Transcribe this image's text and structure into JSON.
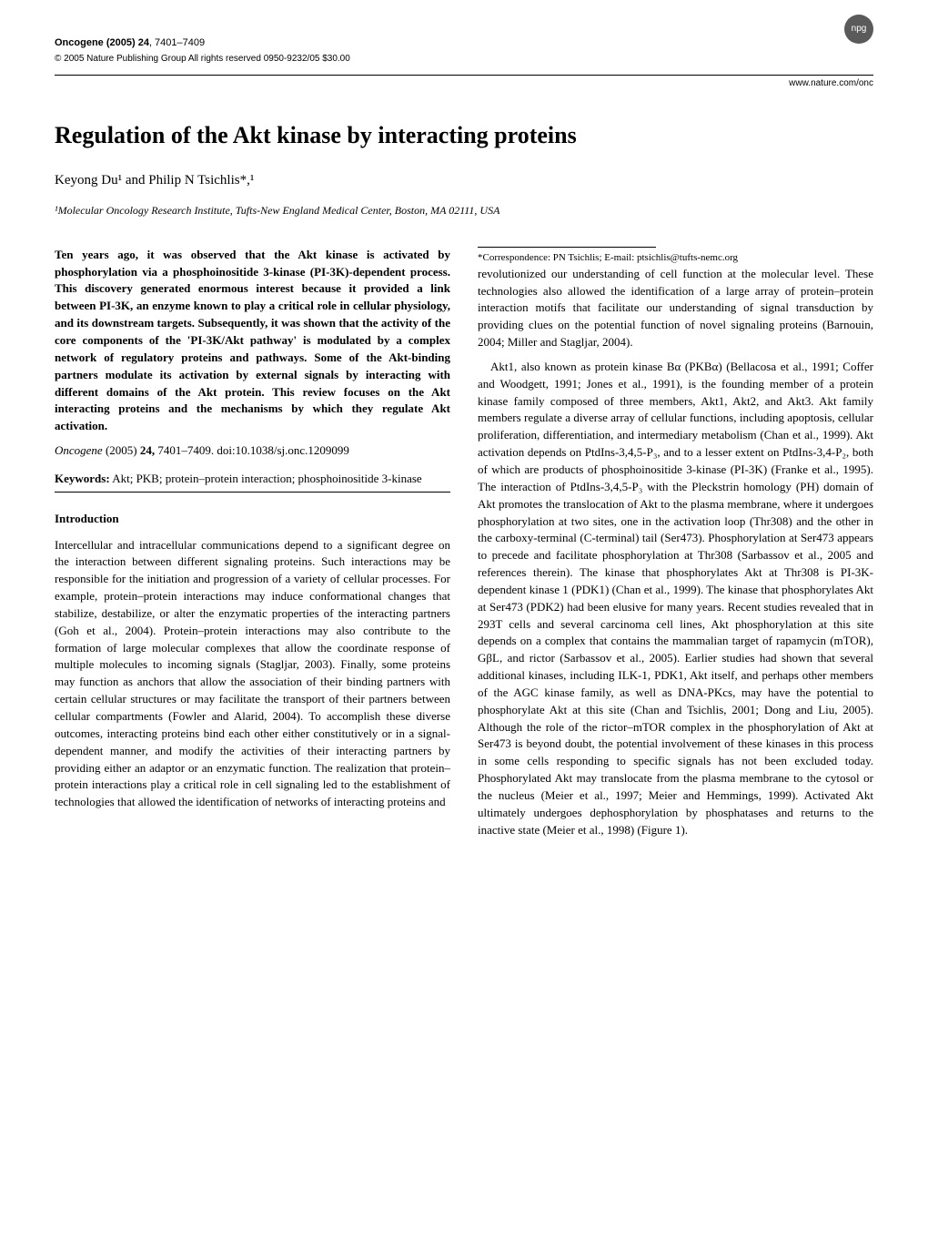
{
  "header": {
    "journal_name": "Oncogene (2005) 24",
    "pages": ", 7401–7409",
    "copyright": "© 2005 Nature Publishing Group   All rights reserved 0950-9232/05 $30.00",
    "website": "www.nature.com/onc",
    "logo_text": "npg"
  },
  "title": "Regulation of the Akt kinase by interacting proteins",
  "authors": "Keyong Du¹ and Philip N Tsichlis*,¹",
  "affiliation": "¹Molecular Oncology Research Institute, Tufts-New England Medical Center, Boston, MA 02111, USA",
  "abstract": "Ten years ago, it was observed that the Akt kinase is activated by phosphorylation via a phosphoinositide 3-kinase (PI-3K)-dependent process. This discovery generated enormous interest because it provided a link between PI-3K, an enzyme known to play a critical role in cellular physiology, and its downstream targets. Subsequently, it was shown that the activity of the core components of the 'PI-3K/Akt pathway' is modulated by a complex network of regulatory proteins and pathways. Some of the Akt-binding partners modulate its activation by external signals by interacting with different domains of the Akt protein. This review focuses on the Akt interacting proteins and the mechanisms by which they regulate Akt activation.",
  "citation_journal": "Oncogene ",
  "citation_rest": "(2005) ",
  "citation_vol": "24,",
  "citation_pages": " 7401–7409. doi:10.1038/sj.onc.1209099",
  "keywords_label": "Keywords:",
  "keywords_text": "   Akt; PKB; protein–protein interaction; phosphoinositide 3-kinase",
  "intro_heading": "Introduction",
  "intro_p1": "Intercellular and intracellular communications depend to a significant degree on the interaction between different signaling proteins. Such interactions may be responsible for the initiation and progression of a variety of cellular processes. For example, protein–protein interactions may induce conformational changes that stabilize, destabilize, or alter the enzymatic properties of the interacting partners (Goh et al., 2004). Protein–protein interactions may also contribute to the formation of large molecular complexes that allow the coordinate response of multiple molecules to incoming signals (Stagljar, 2003). Finally, some proteins may function as anchors that allow the association of their binding partners with certain cellular structures or may facilitate the transport of their partners between cellular compartments (Fowler and Alarid, 2004). To accomplish these diverse outcomes, interacting proteins bind each other either constitutively or in a signal-dependent manner, and modify the activities of their interacting partners by providing either an adaptor or an enzymatic function. The realization that protein–protein interactions play a critical role in cell signaling led to the establishment of technologies that allowed the identification of networks of interacting proteins and",
  "intro_p2": "revolutionized our understanding of cell function at the molecular level. These technologies also allowed the identification of a large array of protein–protein interaction motifs that facilitate our understanding of signal transduction by providing clues on the potential function of novel signaling proteins (Barnouin, 2004; Miller and Stagljar, 2004).",
  "intro_p3": "Akt1, also known as protein kinase Bα (PKBα) (Bellacosa et al., 1991; Coffer and Woodgett, 1991; Jones et al., 1991), is the founding member of a protein kinase family composed of three members, Akt1, Akt2, and Akt3. Akt family members regulate a diverse array of cellular functions, including apoptosis, cellular proliferation, differentiation, and intermediary metabolism (Chan et al., 1999). Akt activation depends on PtdIns-3,4,5-P₃, and to a lesser extent on PtdIns-3,4-P₂, both of which are products of phosphoinositide 3-kinase (PI-3K) (Franke et al., 1995). The interaction of PtdIns-3,4,5-P₃ with the Pleckstrin homology (PH) domain of Akt promotes the translocation of Akt to the plasma membrane, where it undergoes phosphorylation at two sites, one in the activation loop (Thr308) and the other in the carboxy-terminal (C-terminal) tail (Ser473). Phosphorylation at Ser473 appears to precede and facilitate phosphorylation at Thr308 (Sarbassov et al., 2005 and references therein). The kinase that phosphorylates Akt at Thr308 is PI-3K-dependent kinase 1 (PDK1) (Chan et al., 1999). The kinase that phosphorylates Akt at Ser473 (PDK2) had been elusive for many years. Recent studies revealed that in 293T cells and several carcinoma cell lines, Akt phosphorylation at this site depends on a complex that contains the mammalian target of rapamycin (mTOR), GβL, and rictor (Sarbassov et al., 2005). Earlier studies had shown that several additional kinases, including ILK-1, PDK1, Akt itself, and perhaps other members of the AGC kinase family, as well as DNA-PKcs, may have the potential to phosphorylate Akt at this site (Chan and Tsichlis, 2001; Dong and Liu, 2005). Although the role of the rictor–mTOR complex in the phosphorylation of Akt at Ser473 is beyond doubt, the potential involvement of these kinases in this process in some cells responding to specific signals has not been excluded today. Phosphorylated Akt may translocate from the plasma membrane to the cytosol or the nucleus (Meier et al., 1997; Meier and Hemmings, 1999). Activated Akt ultimately undergoes dephosphorylation by phosphatases and returns to the inactive state (Meier et al., 1998) (Figure 1).",
  "footnote": "*Correspondence: PN Tsichlis; E-mail: ptsichlis@tufts-nemc.org"
}
